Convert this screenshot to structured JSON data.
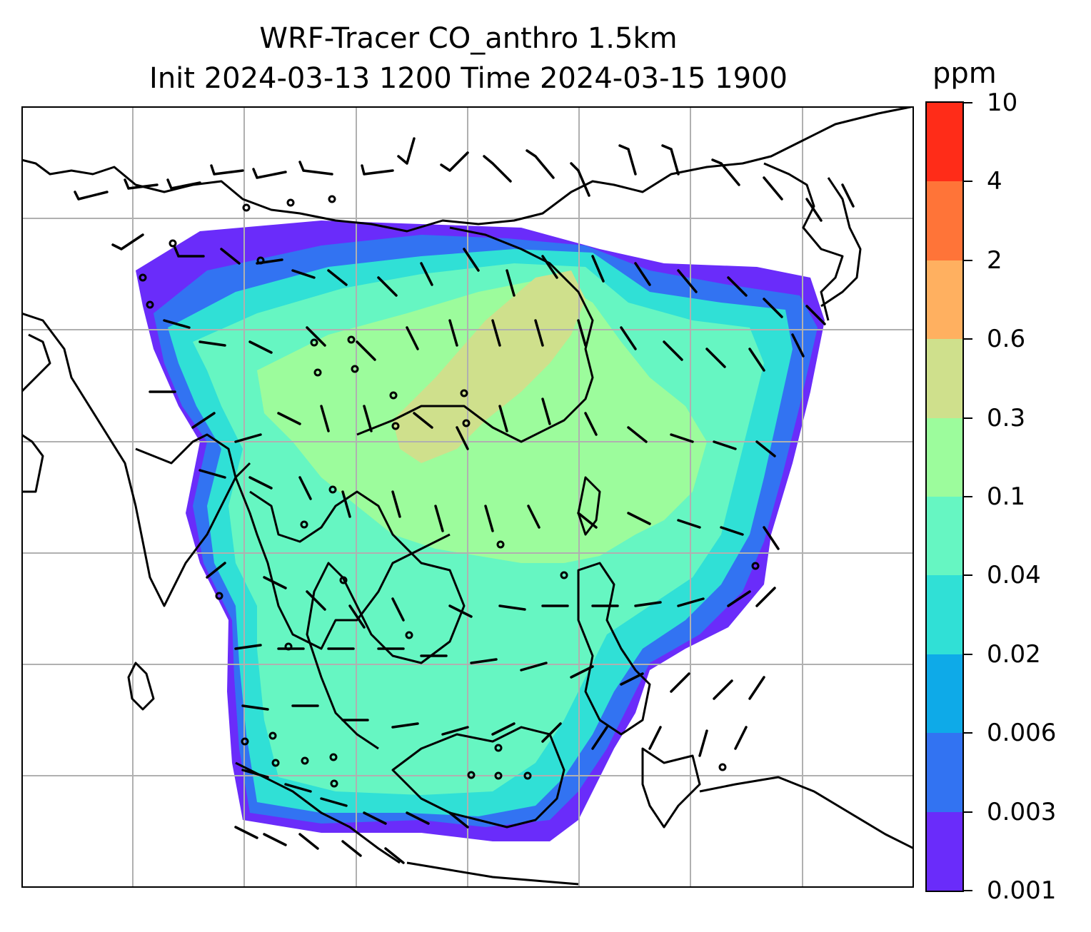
{
  "title_line1": "WRF-Tracer CO_anthro 1.5km",
  "title_line2": "Init 2024-03-13 1200 Time 2024-03-15 1900",
  "colorbar": {
    "unit": "ppm",
    "levels": [
      "0.001",
      "0.003",
      "0.006",
      "0.02",
      "0.04",
      "0.1",
      "0.3",
      "0.6",
      "2",
      "4",
      "10"
    ],
    "colors": [
      "#6a2cfa",
      "#3273f2",
      "#0eaae8",
      "#30e0d6",
      "#66f6c2",
      "#9cfc9c",
      "#cfe08c",
      "#ffb060",
      "#ff7438",
      "#ff2c18"
    ]
  },
  "map": {
    "gridline_color": "#b0b0b0",
    "coastline_color": "#000000",
    "plume_colors": {
      "base": "#6a2cfa",
      "level2": "#3273f2",
      "level3": "#30e0d6",
      "level4": "#66f6c2",
      "level5": "#9cfc9c",
      "level6": "#cfe08c"
    }
  }
}
